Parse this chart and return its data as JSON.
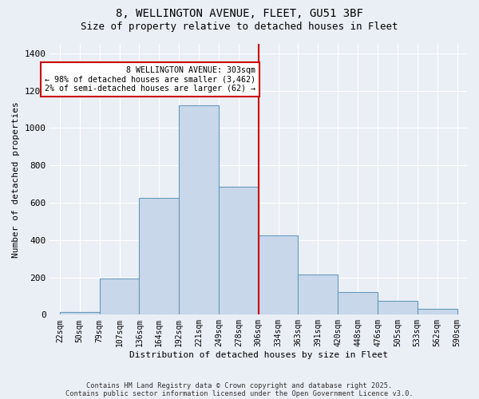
{
  "title1": "8, WELLINGTON AVENUE, FLEET, GU51 3BF",
  "title2": "Size of property relative to detached houses in Fleet",
  "xlabel": "Distribution of detached houses by size in Fleet",
  "ylabel": "Number of detached properties",
  "xlabels": [
    "22sqm",
    "50sqm",
    "79sqm",
    "107sqm",
    "136sqm",
    "164sqm",
    "192sqm",
    "221sqm",
    "249sqm",
    "278sqm",
    "306sqm",
    "334sqm",
    "363sqm",
    "391sqm",
    "420sqm",
    "448sqm",
    "476sqm",
    "505sqm",
    "533sqm",
    "562sqm",
    "590sqm"
  ],
  "bar_lefts": [
    0,
    2,
    4,
    6,
    8,
    10,
    12,
    14,
    16,
    18
  ],
  "bar_heights": [
    15,
    195,
    625,
    1120,
    685,
    425,
    215,
    120,
    75,
    30
  ],
  "bar_color": "#c8d8ea",
  "bar_edge_color": "#6699bb",
  "bg_color": "#eaeff5",
  "red_line_x": 10,
  "annotation_text": "8 WELLINGTON AVENUE: 303sqm\n← 98% of detached houses are smaller (3,462)\n2% of semi-detached houses are larger (62) →",
  "annotation_box_color": "#cc0000",
  "ylim": [
    0,
    1450
  ],
  "yticks": [
    0,
    200,
    400,
    600,
    800,
    1000,
    1200,
    1400
  ],
  "footer1": "Contains HM Land Registry data © Crown copyright and database right 2025.",
  "footer2": "Contains public sector information licensed under the Open Government Licence v3.0."
}
